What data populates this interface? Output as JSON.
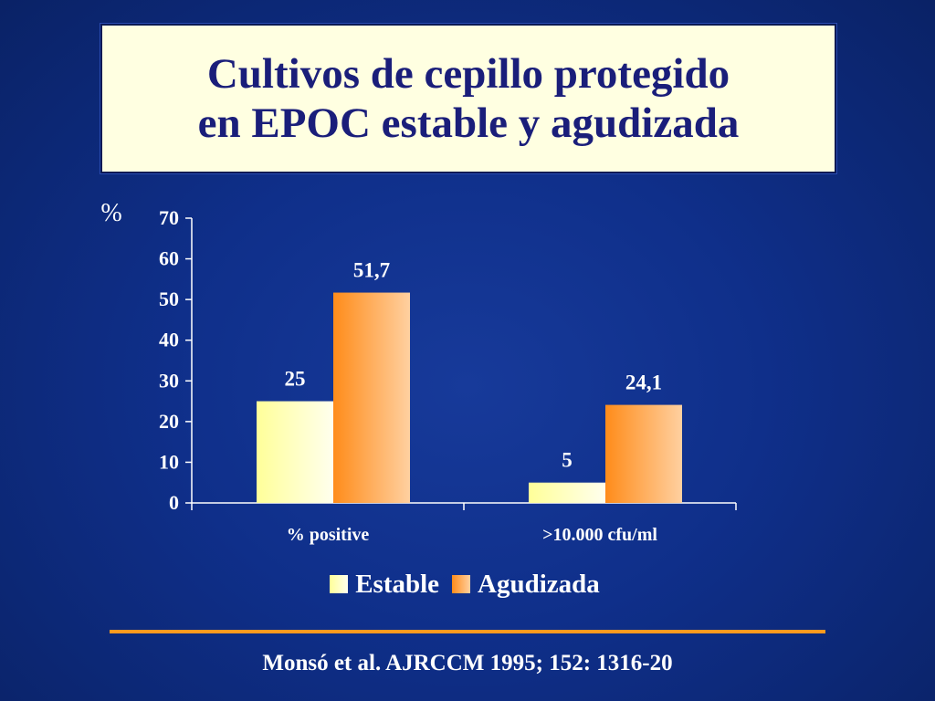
{
  "title": {
    "line1": "Cultivos de cepillo protegido",
    "line2": "en EPOC estable y agudizada"
  },
  "chart_data": {
    "type": "bar",
    "ylabel": "%",
    "ylim": [
      0,
      70
    ],
    "yticks": [
      0,
      10,
      20,
      30,
      40,
      50,
      60,
      70
    ],
    "categories": [
      "% positive",
      ">10.000 cfu/ml"
    ],
    "series": [
      {
        "name": "Estable",
        "values": [
          25,
          5
        ],
        "labels": [
          "25",
          "5"
        ],
        "color": "#ffffc0"
      },
      {
        "name": "Agudizada",
        "values": [
          51.7,
          24.1
        ],
        "labels": [
          "51,7",
          "24,1"
        ],
        "color": "#ff9a33"
      }
    ],
    "grid": false,
    "legend": "bottom-center"
  },
  "colors": {
    "background": "#0f2f8a",
    "title_box": "#ffffe1",
    "title_text": "#1a1e7a",
    "divider": "#ff9a1f"
  },
  "citation": "Monsó et al. AJRCCM 1995; 152: 1316-20"
}
